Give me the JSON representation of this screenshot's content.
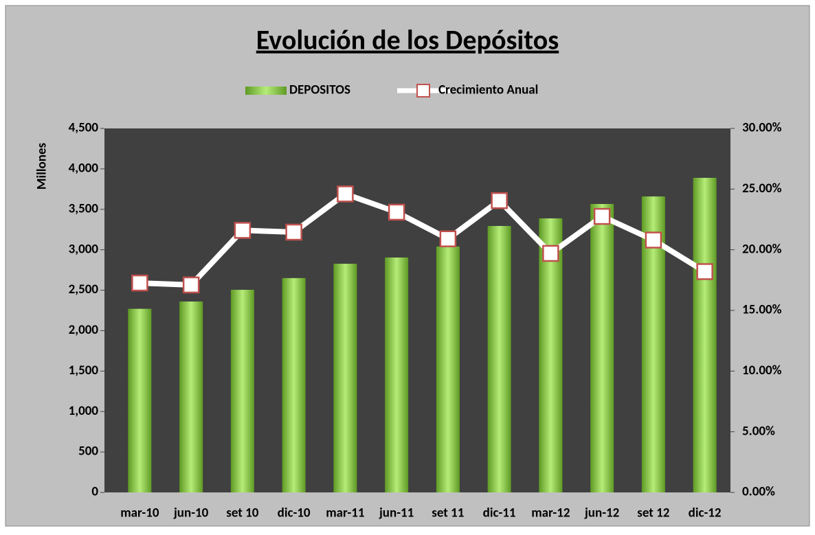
{
  "chart_data": {
    "type": "bar",
    "title": "Evolución de los Depósitos",
    "y_label": "Millones",
    "categories": [
      "mar-10",
      "jun-10",
      "set 10",
      "dic-10",
      "mar-11",
      "jun-11",
      "set 11",
      "dic-11",
      "mar-12",
      "jun-12",
      "set 12",
      "dic-12"
    ],
    "series": [
      {
        "name": "DEPOSITOS",
        "type": "bar",
        "color": "#8fd14f",
        "axis": "y",
        "values": [
          2270,
          2360,
          2505,
          2650,
          2827,
          2904,
          3040,
          3294,
          3388,
          3566,
          3659,
          3889
        ]
      },
      {
        "name": "Crecimiento Anual",
        "type": "line",
        "color": "#ffffff",
        "marker_edge": "#c0504d",
        "axis": "y2",
        "values": [
          17.26,
          17.1,
          21.6,
          21.45,
          24.6,
          23.1,
          20.9,
          24.05,
          19.7,
          22.75,
          20.8,
          18.2
        ]
      }
    ],
    "ylim": [
      0,
      4500
    ],
    "yticks": [
      0,
      500,
      {
        "value": 1000,
        "label": "1,000"
      },
      {
        "value": 1500,
        "label": "1,500"
      },
      {
        "value": 2000,
        "label": "2,000"
      },
      {
        "value": 2500,
        "label": "2,500"
      },
      {
        "value": 3000,
        "label": "3,000"
      },
      {
        "value": 3500,
        "label": "3,500"
      },
      {
        "value": 4000,
        "label": "4,000"
      },
      {
        "value": 4500,
        "label": "4,500"
      }
    ],
    "y2lim": [
      0,
      30
    ],
    "y2ticks": [
      {
        "value": 0,
        "label": "0.00%"
      },
      {
        "value": 5,
        "label": "5.00%"
      },
      {
        "value": 10,
        "label": "10.00%"
      },
      {
        "value": 15,
        "label": "15.00%"
      },
      {
        "value": 20,
        "label": "20.00%"
      },
      {
        "value": 25,
        "label": "25.00%"
      },
      {
        "value": 30,
        "label": "30.00%"
      }
    ],
    "legend": "top"
  }
}
